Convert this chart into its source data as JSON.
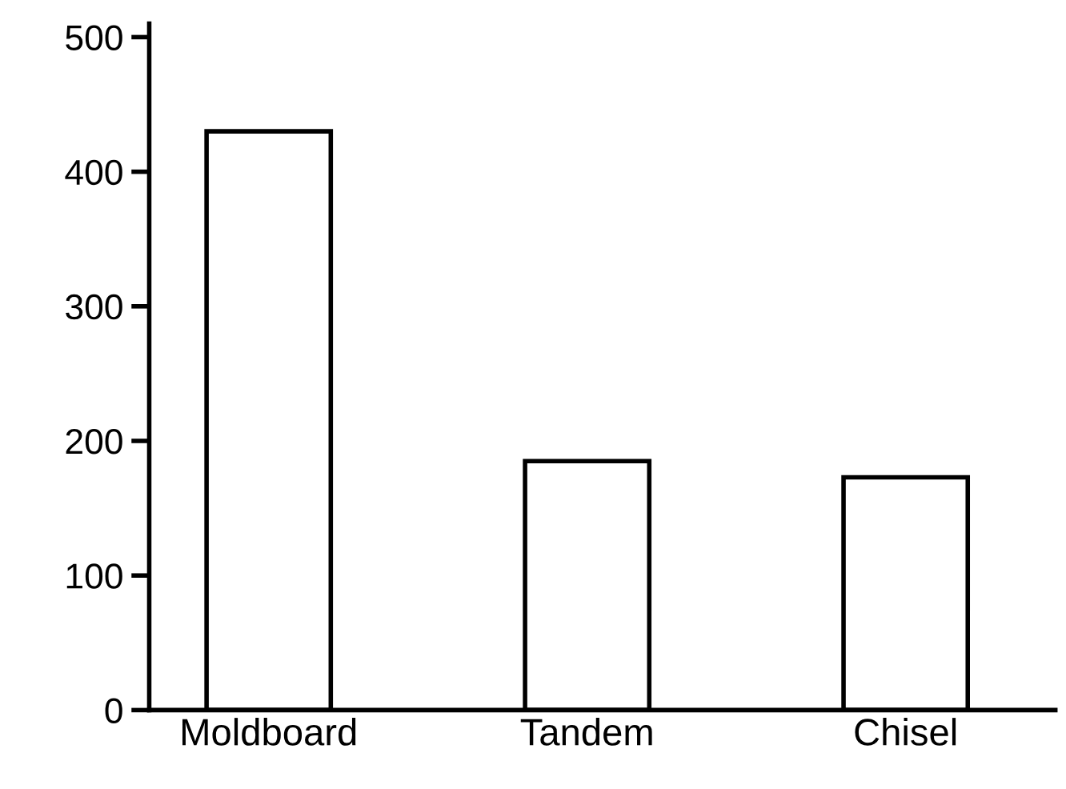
{
  "chart_data": {
    "type": "bar",
    "categories": [
      "Moldboard",
      "Tandem",
      "Chisel"
    ],
    "values": [
      430,
      185,
      173
    ],
    "color": "#ffffff",
    "ylim": [
      0,
      510
    ],
    "yticks": [
      0,
      100,
      200,
      300,
      400,
      500
    ],
    "grid": false,
    "legend": false
  }
}
